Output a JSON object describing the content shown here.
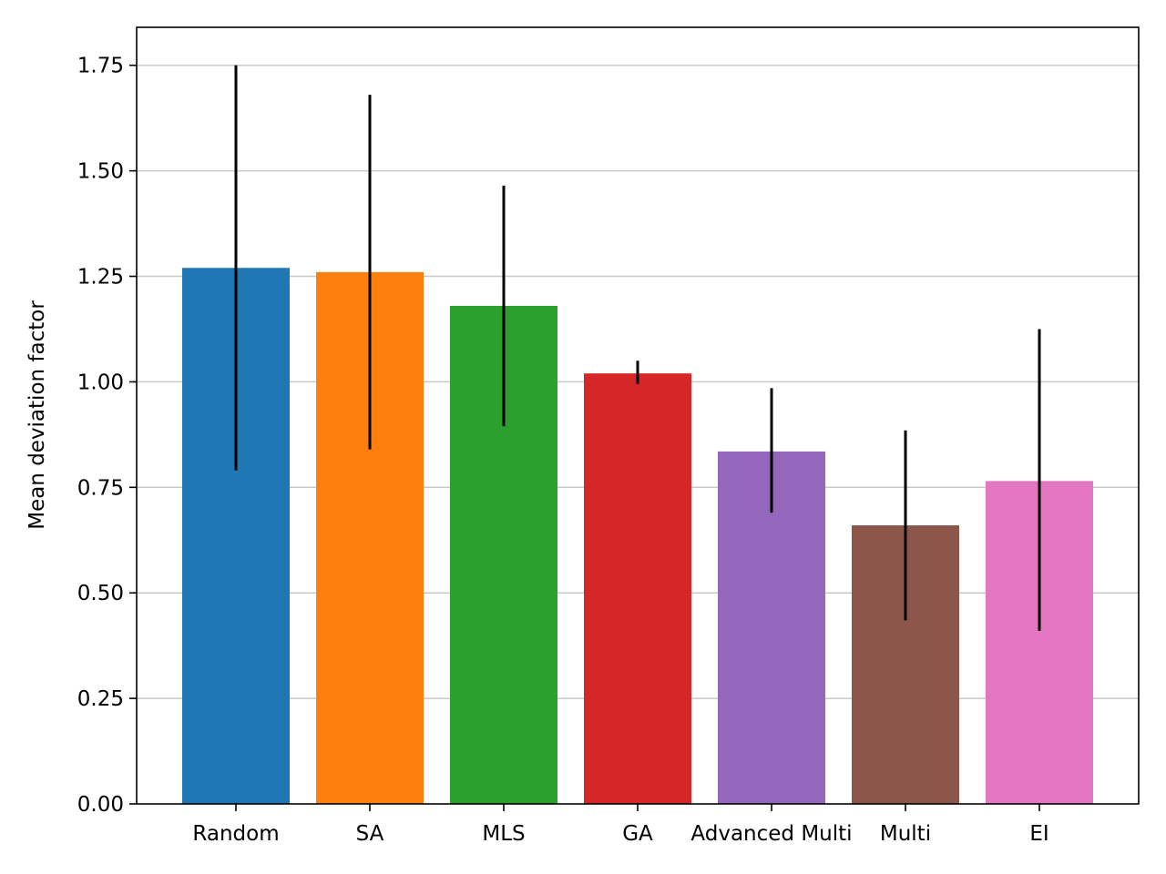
{
  "chart_data": {
    "type": "bar",
    "title": "",
    "xlabel": "",
    "ylabel": "Mean deviation factor",
    "categories": [
      "Random",
      "SA",
      "MLS",
      "GA",
      "Advanced Multi",
      "Multi",
      "EI"
    ],
    "values": [
      1.27,
      1.26,
      1.18,
      1.02,
      0.835,
      0.66,
      0.765
    ],
    "error_low": [
      0.79,
      0.84,
      0.895,
      0.995,
      0.69,
      0.435,
      0.41
    ],
    "error_high": [
      1.75,
      1.68,
      1.465,
      1.05,
      0.985,
      0.885,
      1.125
    ],
    "colors": [
      "#1f77b4",
      "#ff7f0e",
      "#2ca02c",
      "#d62728",
      "#9467bd",
      "#8c564b",
      "#e377c2"
    ],
    "ylim": [
      0,
      1.84
    ],
    "yticks": [
      0.0,
      0.25,
      0.5,
      0.75,
      1.0,
      1.25,
      1.5,
      1.75
    ],
    "ytick_labels": [
      "0.00",
      "0.25",
      "0.50",
      "0.75",
      "1.00",
      "1.25",
      "1.50",
      "1.75"
    ],
    "grid": "horizontal",
    "error_color": "#000000"
  }
}
